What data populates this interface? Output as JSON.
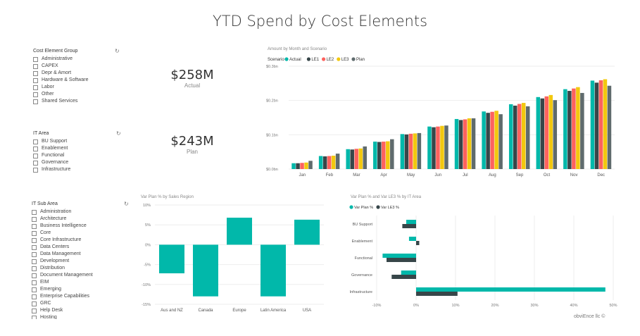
{
  "page_title": "YTD Spend by Cost Elements",
  "slicers": {
    "cost_element_group": {
      "title": "Cost Element Group",
      "items": [
        "Administrative",
        "CAPEX",
        "Depr & Amort",
        "Hardware & Software",
        "Labor",
        "Other",
        "Shared Services"
      ]
    },
    "it_area": {
      "title": "IT Area",
      "items": [
        "BU Support",
        "Enablement",
        "Functional",
        "Governance",
        "Infrastructure"
      ]
    },
    "it_sub_area": {
      "title": "IT Sub Area",
      "items": [
        "Administration",
        "Architecture",
        "Business Intelligence",
        "Core",
        "Core Infrastructure",
        "Data Centers",
        "Data Management",
        "Development",
        "Distribution",
        "Document Management",
        "EIM",
        "Emerging",
        "Enterprise Capabilities",
        "GRC",
        "Help Desk",
        "Hosting"
      ]
    }
  },
  "kpis": {
    "actual": {
      "value": "$258M",
      "label": "Actual"
    },
    "plan": {
      "value": "$243M",
      "label": "Plan"
    }
  },
  "footer": "obviEnce llc ©",
  "colors": {
    "actual": "#01B8AA",
    "le1": "#374649",
    "le2": "#FD625E",
    "le3": "#F2C80F",
    "plan": "#5F6B6D"
  },
  "chart_data": [
    {
      "type": "bar",
      "title": "Amount by Month and Scenario",
      "legend_title": "Scenario",
      "categories": [
        "Jan",
        "Feb",
        "Mar",
        "Apr",
        "May",
        "Jun",
        "Jul",
        "Aug",
        "Sep",
        "Oct",
        "Nov",
        "Dec"
      ],
      "series": [
        {
          "name": "Actual",
          "values": [
            0.017,
            0.038,
            0.058,
            0.08,
            0.102,
            0.124,
            0.146,
            0.168,
            0.189,
            0.21,
            0.233,
            0.258
          ]
        },
        {
          "name": "LE1",
          "values": [
            0.017,
            0.037,
            0.057,
            0.079,
            0.101,
            0.122,
            0.143,
            0.164,
            0.185,
            0.206,
            0.228,
            0.252
          ]
        },
        {
          "name": "LE2",
          "values": [
            0.018,
            0.038,
            0.059,
            0.08,
            0.103,
            0.124,
            0.145,
            0.167,
            0.19,
            0.212,
            0.235,
            0.259
          ]
        },
        {
          "name": "LE3",
          "values": [
            0.019,
            0.039,
            0.06,
            0.081,
            0.104,
            0.126,
            0.148,
            0.17,
            0.193,
            0.216,
            0.239,
            0.262
          ]
        },
        {
          "name": "Plan",
          "values": [
            0.024,
            0.045,
            0.066,
            0.087,
            0.105,
            0.127,
            0.148,
            0.16,
            0.183,
            0.201,
            0.222,
            0.243
          ]
        }
      ],
      "yticks": [
        "$0.0bn",
        "$0.1bn",
        "$0.2bn",
        "$0.3bn"
      ],
      "ylim": [
        0,
        0.3
      ],
      "legend": "top-left"
    },
    {
      "type": "bar",
      "title": "Var Plan % by Sales Region",
      "categories": [
        "Aus and NZ",
        "Canada",
        "Europe",
        "Latin America",
        "USA"
      ],
      "values": [
        -7.2,
        -13.0,
        6.8,
        -13.0,
        6.3
      ],
      "yticks": [
        "10%",
        "5%",
        "0%",
        "-5%",
        "-10%",
        "-15%"
      ],
      "ylim": [
        -15,
        10
      ]
    },
    {
      "type": "bar",
      "title": "Var Plan % and Var LE3 % by IT Area",
      "orientation": "horizontal",
      "categories": [
        "BU Support",
        "Enablement",
        "Functional",
        "Governance",
        "Infrastructure"
      ],
      "series": [
        {
          "name": "Var Plan %",
          "values": [
            -2.5,
            -1.8,
            -8.5,
            -3.8,
            48.0
          ]
        },
        {
          "name": "Var LE3 %",
          "values": [
            -3.5,
            0.8,
            -7.5,
            -6.2,
            10.5
          ]
        }
      ],
      "xticks": [
        "-10%",
        "0%",
        "10%",
        "20%",
        "30%",
        "40%",
        "50%"
      ],
      "xlim": [
        -10,
        50
      ],
      "legend": "top-left"
    }
  ]
}
